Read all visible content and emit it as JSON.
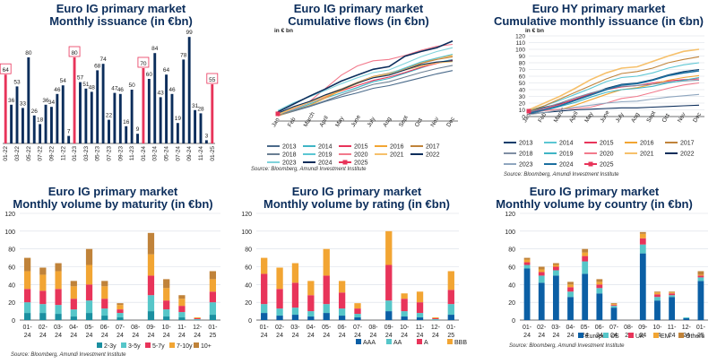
{
  "colors": {
    "navy": "#0b2d5b",
    "red": "#e8345a",
    "grid": "#d8dde6",
    "axis": "#444444",
    "mat": [
      "#1a8fa0",
      "#56c6c9",
      "#e8345a",
      "#f2a533",
      "#c0833a"
    ],
    "rating": [
      "#0b5fa5",
      "#56c6c9",
      "#e8345a",
      "#f2a533"
    ],
    "country": [
      "#0b5fa5",
      "#56c6c9",
      "#e8345a",
      "#f2a533",
      "#c0833a"
    ],
    "years_ig": [
      "#4a6a8a",
      "#3fb5c5",
      "#e8345a",
      "#f2a533",
      "#c0833a",
      "#6a7f93",
      "#5bc6d3",
      "#f27a8c",
      "#f6c06b",
      "#0b2d5b",
      "#7fd3db",
      "#0b2d5b",
      "#e8345a"
    ],
    "years_hy": [
      "#0b3d6b",
      "#5bc6d3",
      "#e8345a",
      "#f2a533",
      "#c0833a",
      "#7f8ea3",
      "#3fb5c5",
      "#f27a8c",
      "#f6c06b",
      "#0b2d5b",
      "#8fa6bf",
      "#1b6fa0",
      "#e8345a"
    ]
  },
  "source": "Source: Bloomberg, Amundi Investment Institute",
  "chart_data": [
    {
      "id": "c1",
      "type": "bar",
      "title1": "Euro IG primary market",
      "title2": "Monthly issuance (in €bn)",
      "categories": [
        "01-22",
        "",
        "03-22",
        "",
        "05-22",
        "",
        "07-22",
        "",
        "09-22",
        "",
        "11-22",
        "",
        "01-23",
        "",
        "03-23",
        "",
        "05-23",
        "",
        "07-23",
        "",
        "09-23",
        "",
        "11-23",
        "",
        "01-24",
        "",
        "03-24",
        "",
        "05-24",
        "",
        "07-24",
        "",
        "09-24",
        "",
        "11-24",
        "",
        "01-25"
      ],
      "values": [
        64,
        36,
        53,
        33,
        80,
        26,
        18,
        36,
        34,
        46,
        54,
        7,
        80,
        57,
        51,
        48,
        68,
        74,
        22,
        47,
        46,
        16,
        50,
        9,
        70,
        60,
        84,
        43,
        64,
        46,
        19,
        78,
        99,
        31,
        28,
        3,
        55
      ],
      "highlight": [
        0,
        12,
        24,
        36
      ],
      "hidden_labels": [
        11
      ]
    },
    {
      "id": "c2",
      "type": "line",
      "title1": "Euro IG primary market",
      "title2": "Cumulative flows (in €bn)",
      "ylabel": "in € bn",
      "months": [
        "Jan",
        "Feb",
        "March",
        "April",
        "May",
        "June",
        "July",
        "Aug",
        "Sept",
        "Oct",
        "Nov",
        "Dec"
      ],
      "legend": [
        "2013",
        "2014",
        "2015",
        "2016",
        "2017",
        "2018",
        "2019",
        "2020",
        "2021",
        "2022",
        "2023",
        "2024",
        "2025"
      ],
      "series": [
        {
          "name": "2013",
          "values": [
            40,
            75,
            110,
            150,
            185,
            215,
            250,
            270,
            300,
            330,
            360,
            385
          ]
        },
        {
          "name": "2014",
          "values": [
            45,
            85,
            130,
            175,
            215,
            255,
            300,
            325,
            365,
            405,
            445,
            470
          ]
        },
        {
          "name": "2015",
          "values": [
            50,
            95,
            140,
            185,
            230,
            270,
            310,
            335,
            370,
            410,
            440,
            465
          ]
        },
        {
          "name": "2016",
          "values": [
            40,
            80,
            120,
            175,
            235,
            285,
            335,
            360,
            400,
            440,
            480,
            500
          ]
        },
        {
          "name": "2017",
          "values": [
            55,
            105,
            150,
            200,
            245,
            295,
            340,
            365,
            400,
            440,
            470,
            490
          ]
        },
        {
          "name": "2018",
          "values": [
            45,
            80,
            115,
            155,
            200,
            240,
            280,
            300,
            335,
            370,
            400,
            425
          ]
        },
        {
          "name": "2019",
          "values": [
            55,
            100,
            140,
            190,
            240,
            290,
            335,
            360,
            405,
            450,
            480,
            510
          ]
        },
        {
          "name": "2020",
          "values": [
            50,
            100,
            150,
            250,
            350,
            420,
            460,
            470,
            500,
            540,
            570,
            585
          ]
        },
        {
          "name": "2021",
          "values": [
            50,
            100,
            145,
            190,
            240,
            290,
            335,
            355,
            390,
            420,
            445,
            455
          ]
        },
        {
          "name": "2022",
          "values": [
            60,
            110,
            150,
            200,
            240,
            290,
            330,
            350,
            390,
            430,
            450,
            460
          ]
        },
        {
          "name": "2023",
          "values": [
            80,
            140,
            185,
            235,
            285,
            330,
            370,
            390,
            440,
            490,
            530,
            560
          ]
        },
        {
          "name": "2024",
          "values": [
            70,
            130,
            190,
            245,
            305,
            350,
            395,
            415,
            495,
            530,
            560,
            610
          ]
        },
        {
          "name": "2025",
          "values": [
            55
          ]
        }
      ],
      "ymax": 650
    },
    {
      "id": "c3",
      "type": "line",
      "title1": "Euro HY primary market",
      "title2": "Cumulative monthly issuance (in €bn)",
      "ylabel": "in € bn",
      "months": [
        "Jan",
        "Feb",
        "March",
        "April",
        "May",
        "June",
        "July",
        "Aug",
        "Sept",
        "Oct",
        "Nov",
        "Dec"
      ],
      "yticks": [
        0,
        10,
        20,
        30,
        40,
        50,
        60,
        70,
        80,
        90,
        100,
        110,
        120
      ],
      "legend": [
        "2013",
        "2014",
        "2015",
        "2016",
        "2017",
        "2018",
        "2019",
        "2020",
        "2021",
        "2022",
        "2023",
        "2024",
        "2025"
      ],
      "series": [
        {
          "name": "2013",
          "values": [
            8,
            14,
            19,
            25,
            33,
            42,
            48,
            50,
            55,
            62,
            67,
            70
          ]
        },
        {
          "name": "2014",
          "values": [
            9,
            16,
            24,
            33,
            42,
            52,
            58,
            60,
            65,
            72,
            77,
            80
          ]
        },
        {
          "name": "2015",
          "values": [
            6,
            12,
            18,
            26,
            34,
            40,
            44,
            46,
            50,
            53,
            55,
            56
          ]
        },
        {
          "name": "2016",
          "values": [
            3,
            6,
            10,
            17,
            25,
            33,
            40,
            43,
            48,
            54,
            58,
            61
          ]
        },
        {
          "name": "2017",
          "values": [
            8,
            16,
            26,
            36,
            46,
            56,
            64,
            67,
            72,
            80,
            85,
            89
          ]
        },
        {
          "name": "2018",
          "values": [
            7,
            13,
            20,
            28,
            35,
            41,
            45,
            46,
            48,
            51,
            53,
            54
          ]
        },
        {
          "name": "2019",
          "values": [
            4,
            9,
            15,
            21,
            29,
            36,
            40,
            42,
            45,
            50,
            54,
            58
          ]
        },
        {
          "name": "2020",
          "values": [
            5,
            9,
            11,
            12,
            14,
            20,
            27,
            30,
            36,
            42,
            47,
            50
          ]
        },
        {
          "name": "2021",
          "values": [
            10,
            20,
            30,
            42,
            55,
            65,
            72,
            74,
            82,
            90,
            97,
            100
          ]
        },
        {
          "name": "2022",
          "values": [
            4,
            6,
            8,
            10,
            11,
            12,
            13,
            13,
            14,
            15,
            16,
            17
          ]
        },
        {
          "name": "2023",
          "values": [
            3,
            6,
            10,
            14,
            17,
            20,
            22,
            23,
            26,
            29,
            31,
            33
          ]
        },
        {
          "name": "2024",
          "values": [
            5,
            10,
            16,
            24,
            32,
            40,
            47,
            49,
            54,
            61,
            65,
            68
          ]
        },
        {
          "name": "2025",
          "values": [
            8
          ]
        }
      ],
      "ymax": 120
    },
    {
      "id": "c4",
      "type": "stacked-bar",
      "title1": "Euro IG primary market",
      "title2": "Monthly volume by maturity (in €bn)",
      "categories": [
        "01-24",
        "02-24",
        "03-24",
        "04-24",
        "05-24",
        "06-24",
        "07-24",
        "08-24",
        "09-24",
        "10-24",
        "11-24",
        "12-24",
        "01-25"
      ],
      "series": [
        {
          "name": "2-3y",
          "values": [
            8,
            8,
            7,
            4,
            8,
            5,
            3,
            0,
            10,
            4,
            3,
            0,
            6
          ]
        },
        {
          "name": "3-5y",
          "values": [
            12,
            10,
            10,
            8,
            14,
            8,
            5,
            0,
            18,
            8,
            6,
            1,
            14
          ]
        },
        {
          "name": "5-7y",
          "values": [
            15,
            15,
            18,
            12,
            18,
            11,
            4,
            0,
            22,
            10,
            7,
            1,
            12
          ]
        },
        {
          "name": "7-10y",
          "values": [
            20,
            18,
            20,
            14,
            22,
            14,
            5,
            0,
            24,
            14,
            8,
            1,
            14
          ]
        },
        {
          "name": "10+",
          "values": [
            15,
            8,
            9,
            6,
            18,
            6,
            2,
            0,
            24,
            10,
            4,
            0,
            9
          ]
        }
      ],
      "ymax": 120,
      "yticks": [
        0,
        20,
        40,
        60,
        80,
        100,
        120
      ]
    },
    {
      "id": "c5",
      "type": "stacked-bar",
      "title1": "Euro IG primary market",
      "title2": "Monthly volume by rating (in €bn)",
      "categories": [
        "01-24",
        "02-24",
        "03-24",
        "04-24",
        "05-24",
        "06-24",
        "07-24",
        "08-24",
        "09-24",
        "10-24",
        "11-24",
        "12-24",
        "01-25"
      ],
      "series": [
        {
          "name": "AAA",
          "values": [
            8,
            5,
            6,
            4,
            8,
            5,
            3,
            0,
            10,
            4,
            3,
            0,
            6
          ]
        },
        {
          "name": "AA",
          "values": [
            10,
            8,
            8,
            6,
            10,
            8,
            4,
            0,
            12,
            6,
            5,
            1,
            12
          ]
        },
        {
          "name": "A",
          "values": [
            34,
            22,
            28,
            18,
            32,
            18,
            6,
            0,
            40,
            14,
            12,
            1,
            16
          ]
        },
        {
          "name": "BBB",
          "values": [
            18,
            24,
            22,
            16,
            30,
            13,
            6,
            0,
            38,
            6,
            12,
            1,
            21
          ]
        }
      ],
      "ymax": 120,
      "yticks": [
        0,
        20,
        40,
        60,
        80,
        100,
        120
      ]
    },
    {
      "id": "c6",
      "type": "stacked-bar",
      "title1": "Euro IG primary market",
      "title2": "Monthly volume by country (in €bn)",
      "categories": [
        "01-24",
        "02-24",
        "03-24",
        "04-24",
        "05-24",
        "06-24",
        "07-24",
        "08-24",
        "09-24",
        "10-24",
        "11-24",
        "12-24",
        "01-25"
      ],
      "series": [
        {
          "name": "Europe",
          "values": [
            58,
            42,
            50,
            26,
            52,
            30,
            14,
            0,
            75,
            22,
            26,
            2,
            44
          ]
        },
        {
          "name": "US",
          "values": [
            4,
            8,
            6,
            6,
            14,
            6,
            2,
            0,
            10,
            4,
            2,
            1,
            4
          ]
        },
        {
          "name": "UK",
          "values": [
            3,
            4,
            4,
            5,
            6,
            4,
            1,
            0,
            7,
            3,
            2,
            0,
            2
          ]
        },
        {
          "name": "EM",
          "values": [
            3,
            3,
            2,
            3,
            4,
            3,
            1,
            0,
            5,
            2,
            1,
            0,
            1
          ]
        },
        {
          "name": "Others",
          "values": [
            2,
            3,
            2,
            3,
            4,
            3,
            1,
            0,
            2,
            1,
            1,
            0,
            4
          ]
        }
      ],
      "ymax": 120,
      "yticks": [
        0,
        20,
        40,
        60,
        80,
        100,
        120
      ]
    }
  ]
}
